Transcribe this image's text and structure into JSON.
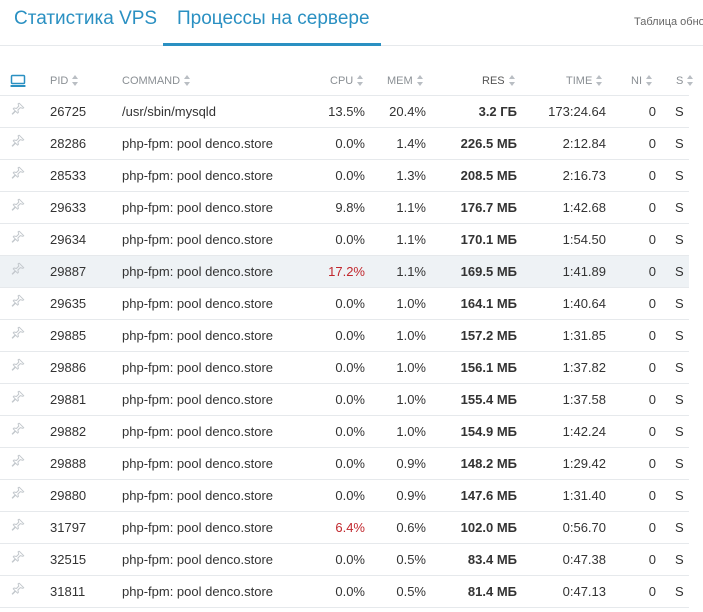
{
  "tabs": [
    {
      "label": "Статистика VPS",
      "active": false
    },
    {
      "label": "Процессы на сервере",
      "active": true
    }
  ],
  "aside_text": "Таблица обно",
  "colors": {
    "accent": "#2a90c2",
    "high_cpu": "#c1272d",
    "highlight_row": "#eef2f5"
  },
  "table": {
    "columns": {
      "monitor_icon": "monitor-icon",
      "pid": "PID",
      "command": "COMMAND",
      "cpu": "CPU",
      "mem": "MEM",
      "res": "RES",
      "time": "TIME",
      "ni": "NI",
      "s": "S"
    },
    "rows": [
      {
        "pid": "26725",
        "command": "/usr/sbin/mysqld",
        "cpu": "13.5%",
        "mem": "20.4%",
        "res": "3.2 ГБ",
        "time": "173:24.64",
        "ni": "0",
        "s": "S"
      },
      {
        "pid": "28286",
        "command": "php-fpm: pool denco.store",
        "cpu": "0.0%",
        "mem": "1.4%",
        "res": "226.5 МБ",
        "time": "2:12.84",
        "ni": "0",
        "s": "S"
      },
      {
        "pid": "28533",
        "command": "php-fpm: pool denco.store",
        "cpu": "0.0%",
        "mem": "1.3%",
        "res": "208.5 МБ",
        "time": "2:16.73",
        "ni": "0",
        "s": "S"
      },
      {
        "pid": "29633",
        "command": "php-fpm: pool denco.store",
        "cpu": "9.8%",
        "mem": "1.1%",
        "res": "176.7 МБ",
        "time": "1:42.68",
        "ni": "0",
        "s": "S"
      },
      {
        "pid": "29634",
        "command": "php-fpm: pool denco.store",
        "cpu": "0.0%",
        "mem": "1.1%",
        "res": "170.1 МБ",
        "time": "1:54.50",
        "ni": "0",
        "s": "S"
      },
      {
        "pid": "29887",
        "command": "php-fpm: pool denco.store",
        "cpu": "17.2%",
        "mem": "1.1%",
        "res": "169.5 МБ",
        "time": "1:41.89",
        "ni": "0",
        "s": "S"
      },
      {
        "pid": "29635",
        "command": "php-fpm: pool denco.store",
        "cpu": "0.0%",
        "mem": "1.0%",
        "res": "164.1 МБ",
        "time": "1:40.64",
        "ni": "0",
        "s": "S"
      },
      {
        "pid": "29885",
        "command": "php-fpm: pool denco.store",
        "cpu": "0.0%",
        "mem": "1.0%",
        "res": "157.2 МБ",
        "time": "1:31.85",
        "ni": "0",
        "s": "S"
      },
      {
        "pid": "29886",
        "command": "php-fpm: pool denco.store",
        "cpu": "0.0%",
        "mem": "1.0%",
        "res": "156.1 МБ",
        "time": "1:37.82",
        "ni": "0",
        "s": "S"
      },
      {
        "pid": "29881",
        "command": "php-fpm: pool denco.store",
        "cpu": "0.0%",
        "mem": "1.0%",
        "res": "155.4 МБ",
        "time": "1:37.58",
        "ni": "0",
        "s": "S"
      },
      {
        "pid": "29882",
        "command": "php-fpm: pool denco.store",
        "cpu": "0.0%",
        "mem": "1.0%",
        "res": "154.9 МБ",
        "time": "1:42.24",
        "ni": "0",
        "s": "S"
      },
      {
        "pid": "29888",
        "command": "php-fpm: pool denco.store",
        "cpu": "0.0%",
        "mem": "0.9%",
        "res": "148.2 МБ",
        "time": "1:29.42",
        "ni": "0",
        "s": "S"
      },
      {
        "pid": "29880",
        "command": "php-fpm: pool denco.store",
        "cpu": "0.0%",
        "mem": "0.9%",
        "res": "147.6 МБ",
        "time": "1:31.40",
        "ni": "0",
        "s": "S"
      },
      {
        "pid": "31797",
        "command": "php-fpm: pool denco.store",
        "cpu": "6.4%",
        "mem": "0.6%",
        "res": "102.0 МБ",
        "time": "0:56.70",
        "ni": "0",
        "s": "S"
      },
      {
        "pid": "32515",
        "command": "php-fpm: pool denco.store",
        "cpu": "0.0%",
        "mem": "0.5%",
        "res": "83.4 МБ",
        "time": "0:47.38",
        "ni": "0",
        "s": "S"
      },
      {
        "pid": "31811",
        "command": "php-fpm: pool denco.store",
        "cpu": "0.0%",
        "mem": "0.5%",
        "res": "81.4 МБ",
        "time": "0:47.13",
        "ni": "0",
        "s": "S"
      }
    ],
    "highlighted_row": 5,
    "red_cpu_rows": [
      5,
      13
    ]
  }
}
